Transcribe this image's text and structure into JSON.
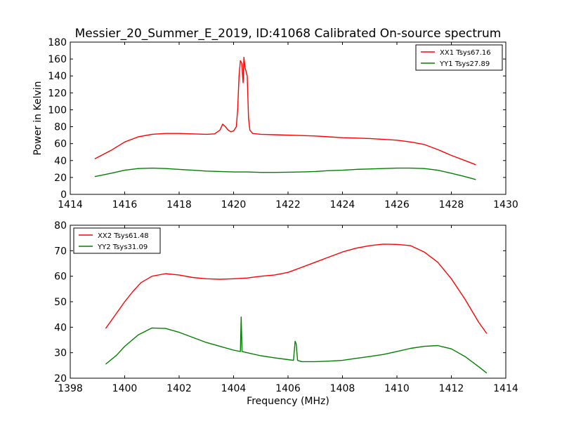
{
  "title": "Messier_20_Summer_E_2019, ID:41068 Calibrated On-source spectrum",
  "colors": {
    "red": "#ff0000",
    "green": "#008000"
  },
  "chart_data": [
    {
      "type": "line",
      "xlabel": "",
      "ylabel": "Power in Kelvin",
      "xlim": [
        1414,
        1430
      ],
      "ylim": [
        0,
        180
      ],
      "xticks": [
        1414,
        1416,
        1418,
        1420,
        1422,
        1424,
        1426,
        1428,
        1430
      ],
      "yticks": [
        0,
        20,
        40,
        60,
        80,
        100,
        120,
        140,
        160,
        180
      ],
      "legend_position": "top-right",
      "series": [
        {
          "name": "XX1 Tsys67.16",
          "color": "#ff0000",
          "x": [
            1414.9,
            1415.5,
            1416.0,
            1416.5,
            1417.0,
            1417.5,
            1418.0,
            1418.5,
            1419.0,
            1419.3,
            1419.5,
            1419.6,
            1419.7,
            1419.8,
            1419.9,
            1420.0,
            1420.1,
            1420.15,
            1420.2,
            1420.25,
            1420.3,
            1420.35,
            1420.38,
            1420.42,
            1420.5,
            1420.55,
            1420.6,
            1420.7,
            1421.0,
            1421.5,
            1422.0,
            1422.5,
            1423.0,
            1423.5,
            1424.0,
            1424.5,
            1425.0,
            1425.5,
            1426.0,
            1426.5,
            1427.0,
            1427.5,
            1428.0,
            1428.5,
            1428.9
          ],
          "y": [
            42,
            52,
            62,
            68,
            71,
            72,
            72,
            71.5,
            71,
            71.5,
            76,
            83,
            80,
            76,
            74,
            75,
            80,
            100,
            140,
            158,
            155,
            132,
            162,
            150,
            140,
            90,
            76,
            72,
            71,
            70.5,
            70,
            69.5,
            69,
            68,
            67,
            66.5,
            66,
            65,
            64,
            62,
            59,
            53,
            46,
            40,
            35
          ]
        },
        {
          "name": "YY1 Tsys27.89",
          "color": "#008000",
          "x": [
            1414.9,
            1415.5,
            1416.0,
            1416.5,
            1417.0,
            1417.5,
            1418.0,
            1418.5,
            1419.0,
            1419.5,
            1420.0,
            1420.5,
            1421.0,
            1421.5,
            1422.0,
            1422.5,
            1423.0,
            1423.5,
            1424.0,
            1424.5,
            1425.0,
            1425.5,
            1426.0,
            1426.5,
            1427.0,
            1427.5,
            1428.0,
            1428.5,
            1428.9
          ],
          "y": [
            21,
            25,
            28.5,
            30.5,
            31,
            30.5,
            29.5,
            28.5,
            27.5,
            27,
            26.5,
            26.5,
            26,
            26,
            26.2,
            26.5,
            27,
            28,
            28.5,
            29.5,
            30,
            30.5,
            31,
            31,
            30.5,
            28.5,
            25,
            21,
            17.5
          ]
        }
      ]
    },
    {
      "type": "line",
      "xlabel": "Frequency (MHz)",
      "ylabel": "",
      "xlim": [
        1398,
        1414
      ],
      "ylim": [
        20,
        80
      ],
      "xticks": [
        1398,
        1400,
        1402,
        1404,
        1406,
        1408,
        1410,
        1412,
        1414
      ],
      "yticks": [
        20,
        30,
        40,
        50,
        60,
        70,
        80
      ],
      "legend_position": "top-left",
      "series": [
        {
          "name": "XX2 Tsys61.48",
          "color": "#ff0000",
          "x": [
            1399.3,
            1399.7,
            1400.0,
            1400.3,
            1400.6,
            1401.0,
            1401.5,
            1402.0,
            1402.5,
            1403.0,
            1403.5,
            1404.0,
            1404.5,
            1405.0,
            1405.5,
            1406.0,
            1406.5,
            1407.0,
            1407.5,
            1408.0,
            1408.5,
            1409.0,
            1409.5,
            1410.0,
            1410.5,
            1411.0,
            1411.5,
            1412.0,
            1412.5,
            1413.0,
            1413.3
          ],
          "y": [
            39.5,
            45.5,
            50,
            54,
            57.5,
            60,
            61,
            60.5,
            59.5,
            59,
            58.8,
            59,
            59.3,
            60,
            60.5,
            61.5,
            63.5,
            65.5,
            67.5,
            69.5,
            71,
            72,
            72.6,
            72.5,
            72,
            69.5,
            65.5,
            59,
            51,
            42,
            37.5
          ]
        },
        {
          "name": "YY2 Tsys31.09",
          "color": "#008000",
          "x": [
            1399.3,
            1399.7,
            1400.0,
            1400.5,
            1401.0,
            1401.5,
            1402.0,
            1402.5,
            1403.0,
            1403.5,
            1404.0,
            1404.25,
            1404.28,
            1404.31,
            1404.5,
            1405.0,
            1405.5,
            1406.0,
            1406.2,
            1406.26,
            1406.3,
            1406.35,
            1406.5,
            1407.0,
            1407.5,
            1408.0,
            1408.5,
            1409.0,
            1409.5,
            1410.0,
            1410.5,
            1411.0,
            1411.5,
            1412.0,
            1412.5,
            1413.0,
            1413.3
          ],
          "y": [
            25.5,
            29,
            32.5,
            37,
            39.7,
            39.5,
            38,
            36,
            34,
            32.5,
            31,
            30.5,
            44,
            30.5,
            30,
            28.8,
            28,
            27.3,
            27,
            34.5,
            33.5,
            27,
            26.5,
            26.5,
            26.7,
            27,
            27.8,
            28.5,
            29.3,
            30.5,
            31.7,
            32.5,
            32.8,
            31.5,
            28.5,
            24.5,
            22
          ]
        }
      ]
    }
  ]
}
